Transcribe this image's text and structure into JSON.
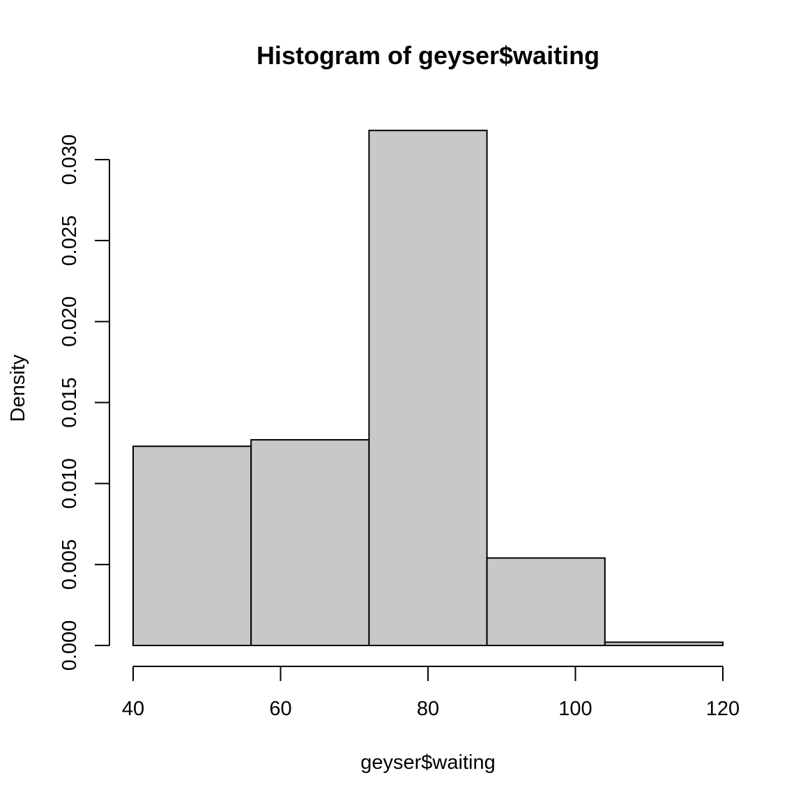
{
  "chart_data": {
    "type": "bar",
    "title": "Histogram of geyser$waiting",
    "xlabel": "geyser$waiting",
    "ylabel": "Density",
    "bins": [
      {
        "start": 40,
        "end": 56,
        "density": 0.0123
      },
      {
        "start": 56,
        "end": 72,
        "density": 0.0127
      },
      {
        "start": 72,
        "end": 88,
        "density": 0.0318
      },
      {
        "start": 88,
        "end": 104,
        "density": 0.0054
      },
      {
        "start": 104,
        "end": 120,
        "density": 0.0002
      }
    ],
    "xlim": [
      40,
      120
    ],
    "ylim": [
      0,
      0.03
    ],
    "x_ticks": [
      40,
      60,
      80,
      100,
      120
    ],
    "x_tick_labels": [
      "40",
      "60",
      "80",
      "100",
      "120"
    ],
    "y_ticks": [
      0,
      0.005,
      0.01,
      0.015,
      0.02,
      0.025,
      0.03
    ],
    "y_tick_labels": [
      "0.000",
      "0.005",
      "0.010",
      "0.015",
      "0.020",
      "0.025",
      "0.030"
    ],
    "bar_color": "#c8c8c8",
    "grid": false,
    "legend": "none"
  }
}
